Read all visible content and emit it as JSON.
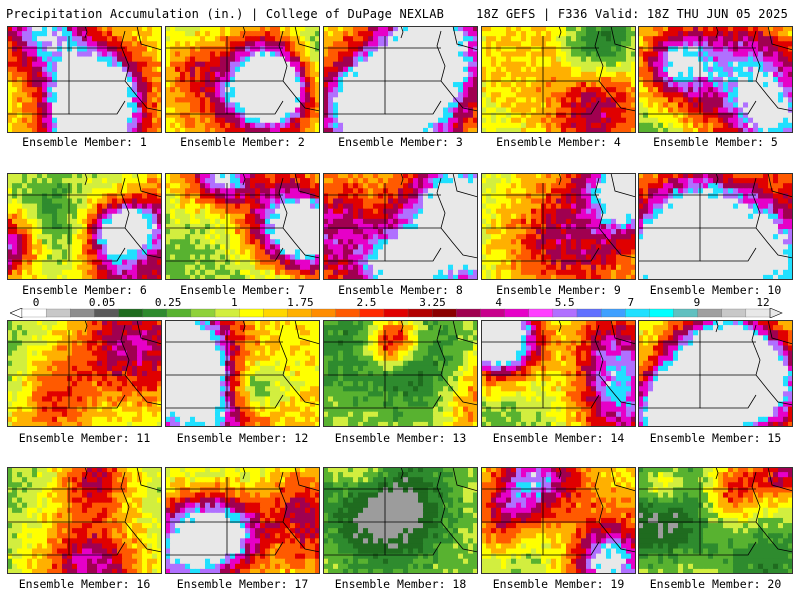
{
  "header": {
    "title": "Precipitation Accumulation (in.) | College of DuPage NEXLAB",
    "run_info": "18Z GEFS | F336 Valid: 18Z THU JUN 05 2025"
  },
  "member_label_prefix": "Ensemble Member:",
  "members": [
    "1",
    "2",
    "3",
    "4",
    "5",
    "6",
    "7",
    "8",
    "9",
    "10",
    "11",
    "12",
    "13",
    "14",
    "15",
    "16",
    "17",
    "18",
    "19",
    "20"
  ],
  "legend": {
    "tick_labels": [
      "0",
      "0.05",
      "0.25",
      "1",
      "1.75",
      "2.5",
      "3.25",
      "4",
      "5.5",
      "7",
      "9",
      "12"
    ],
    "colors": [
      "#ffffff",
      "#c8c8c8",
      "#8e8e8e",
      "#5a5a5a",
      "#1f6b1f",
      "#2e8b2e",
      "#58b230",
      "#8fd13a",
      "#d2ee3f",
      "#ffff00",
      "#ffd700",
      "#ffb000",
      "#ff8c00",
      "#ff5a00",
      "#ff2a00",
      "#e00000",
      "#b20000",
      "#8b0000",
      "#a00050",
      "#c8008c",
      "#e600c8",
      "#ff40ff",
      "#b070ff",
      "#6070ff",
      "#3fa0ff",
      "#20e0ff",
      "#00ffff",
      "#60c0c0",
      "#a0a0a0",
      "#c8c8c8",
      "#e8e8e8"
    ]
  }
}
